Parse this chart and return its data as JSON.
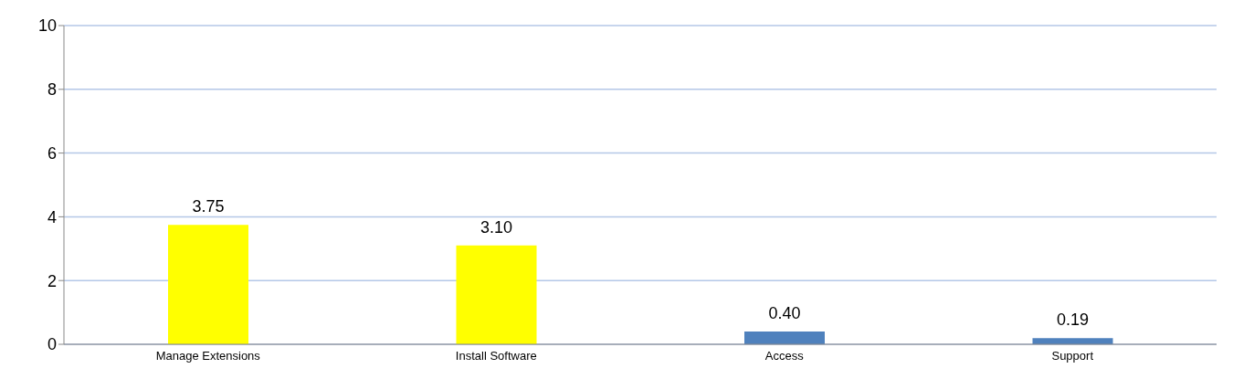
{
  "chart_data": {
    "type": "bar",
    "categories": [
      "Manage Extensions",
      "Install Software",
      "Access",
      "Support"
    ],
    "values": [
      3.75,
      3.1,
      0.4,
      0.19
    ],
    "value_labels": [
      "3.75",
      "3.10",
      "0.40",
      "0.19"
    ],
    "colors": [
      "#ffff00",
      "#ffff00",
      "#4f81bd",
      "#4f81bd"
    ],
    "ylim": [
      0,
      10
    ],
    "yticks": [
      0,
      2,
      4,
      6,
      8,
      10
    ],
    "grid": "y"
  }
}
